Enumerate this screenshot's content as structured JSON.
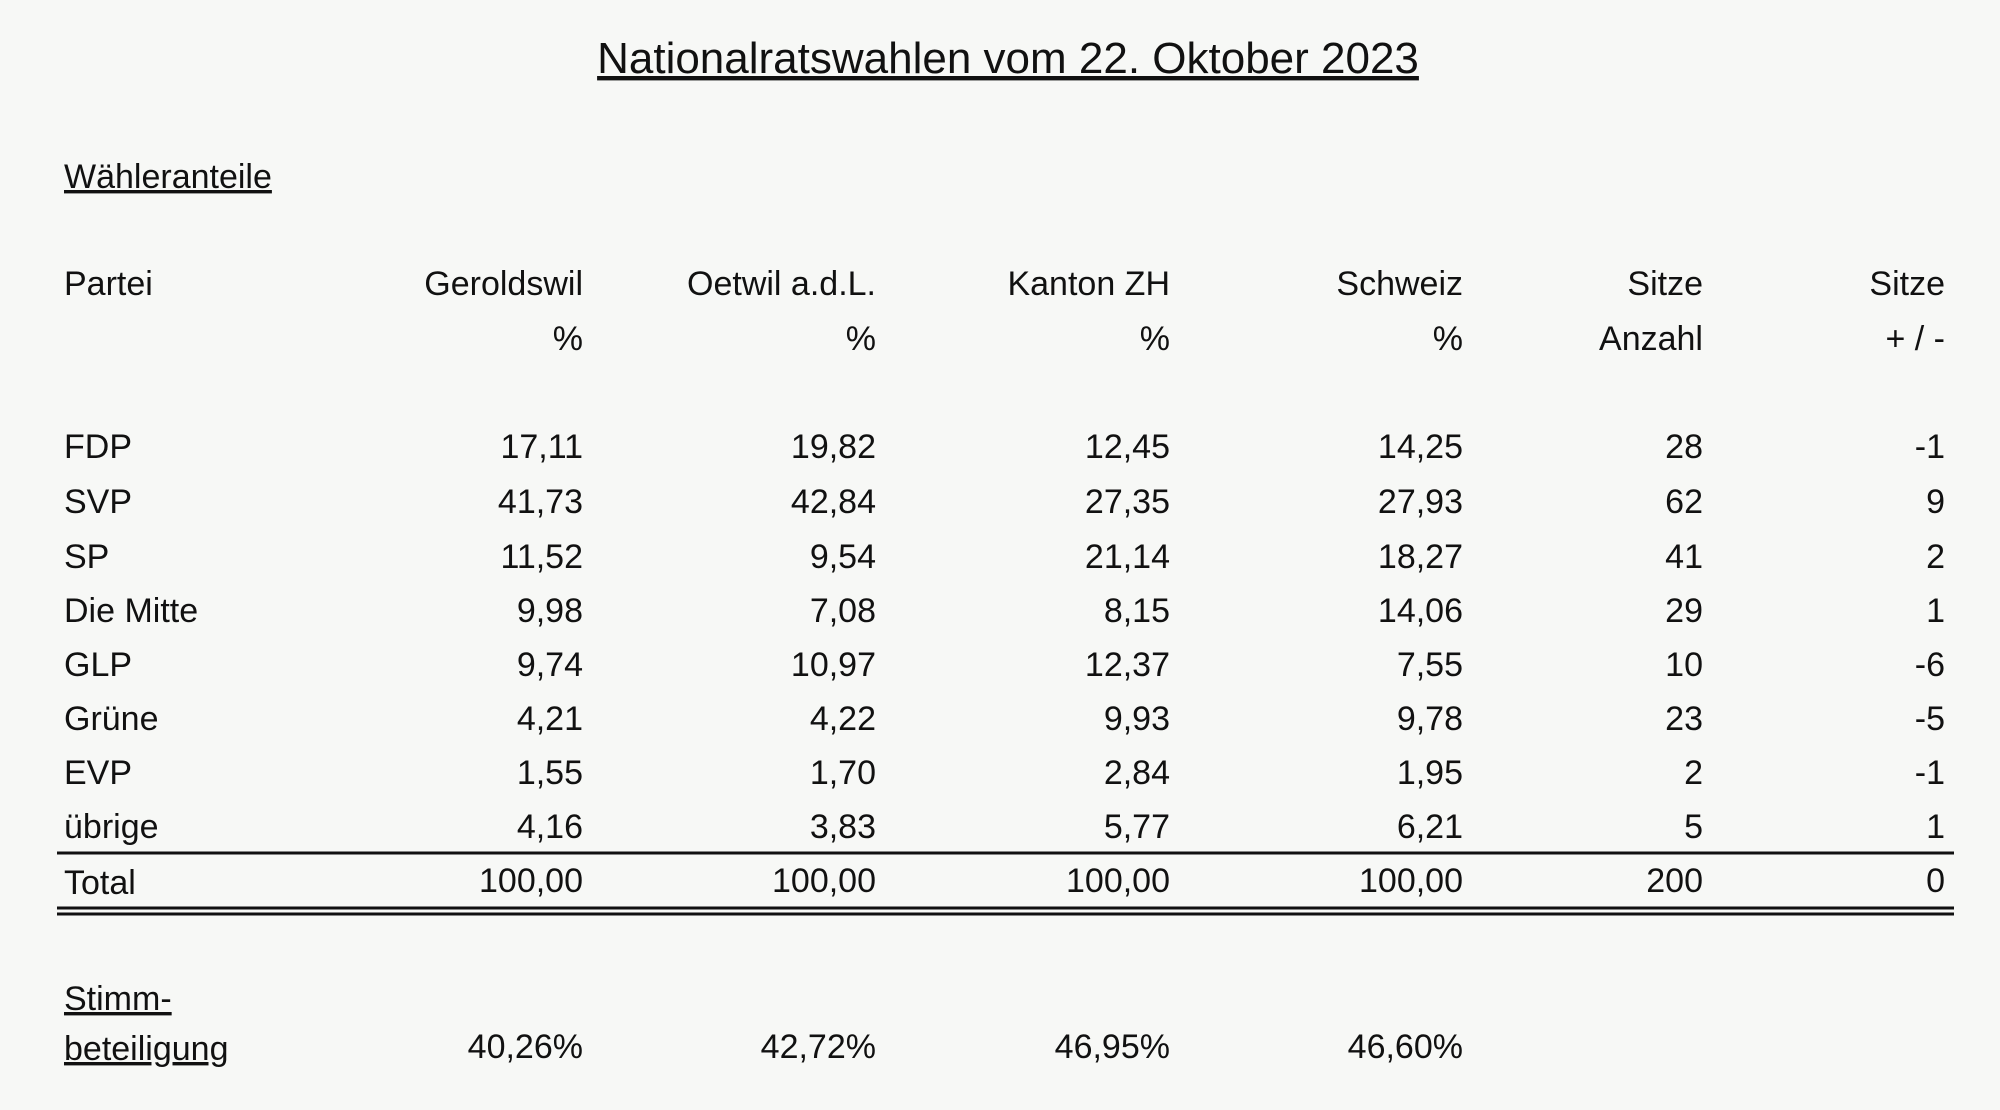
{
  "title": "Nationalratswahlen vom 22. Oktober 2023",
  "section": "Wähleranteile",
  "table": {
    "header": [
      {
        "lines": [
          "Partei"
        ]
      },
      {
        "lines": [
          "Geroldswil",
          "%"
        ]
      },
      {
        "lines": [
          "Oetwil a.d.L.",
          "%"
        ]
      },
      {
        "lines": [
          "Kanton ZH",
          "%"
        ]
      },
      {
        "lines": [
          "Schweiz",
          "%"
        ]
      },
      {
        "lines": [
          "Sitze",
          "Anzahl"
        ]
      },
      {
        "lines": [
          "Sitze",
          "+ / -"
        ]
      }
    ],
    "rows": [
      {
        "party": "FDP",
        "color": "#1c2b6e",
        "cells": [
          "17,11",
          "19,82",
          "12,45",
          "14,25",
          "28",
          "-1"
        ]
      },
      {
        "party": "SVP",
        "color": "#2f4a17",
        "cells": [
          "41,73",
          "42,84",
          "27,35",
          "27,93",
          "62",
          "9"
        ]
      },
      {
        "party": "SP",
        "color": "#b01e22",
        "cells": [
          "11,52",
          "9,54",
          "21,14",
          "18,27",
          "41",
          "2"
        ]
      },
      {
        "party": "Die Mitte",
        "color": "#dda600",
        "cells": [
          "9,98",
          "7,08",
          "8,15",
          "14,06",
          "29",
          "1"
        ]
      },
      {
        "party": "GLP",
        "color": "#4c7a1c",
        "cells": [
          "9,74",
          "10,97",
          "12,37",
          "7,55",
          "10",
          "-6"
        ]
      },
      {
        "party": "Grüne",
        "color": "#1d5d28",
        "cells": [
          "4,21",
          "4,22",
          "9,93",
          "9,78",
          "23",
          "-5"
        ]
      },
      {
        "party": "EVP",
        "color": "#1e1e1e",
        "cells": [
          "1,55",
          "1,70",
          "2,84",
          "1,95",
          "2",
          "-1"
        ]
      },
      {
        "party": "übrige",
        "color": "#333333",
        "cells": [
          "4,16",
          "3,83",
          "5,77",
          "6,21",
          "5",
          "1"
        ]
      }
    ],
    "total": {
      "label": "Total",
      "cells": [
        "100,00",
        "100,00",
        "100,00",
        "100,00",
        "200",
        "0"
      ]
    }
  },
  "turnout": {
    "label_lines": [
      "Stimm-",
      "beteiligung"
    ],
    "cells": [
      "40,26%",
      "42,72%",
      "46,95%",
      "46,60%"
    ]
  }
}
